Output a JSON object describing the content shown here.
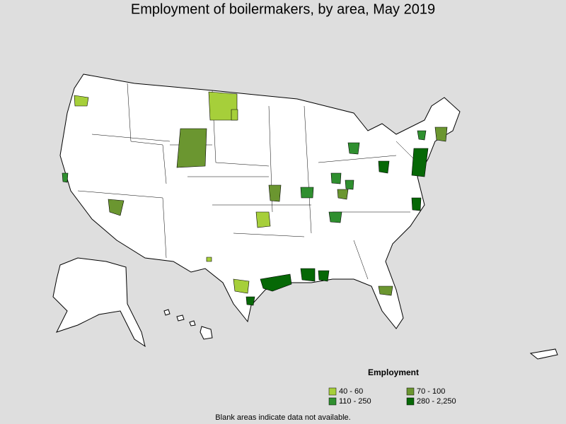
{
  "title": "Employment of boilermakers, by area, May 2019",
  "legend": {
    "title": "Employment",
    "items": [
      {
        "label": "40 - 60",
        "color": "#a6cf3a"
      },
      {
        "label": "70 - 100",
        "color": "#6b9630"
      },
      {
        "label": "110 - 250",
        "color": "#2f8f2f"
      },
      {
        "label": "280 - 2,250",
        "color": "#066806"
      }
    ]
  },
  "footnote": "Blank areas indicate data not available."
}
